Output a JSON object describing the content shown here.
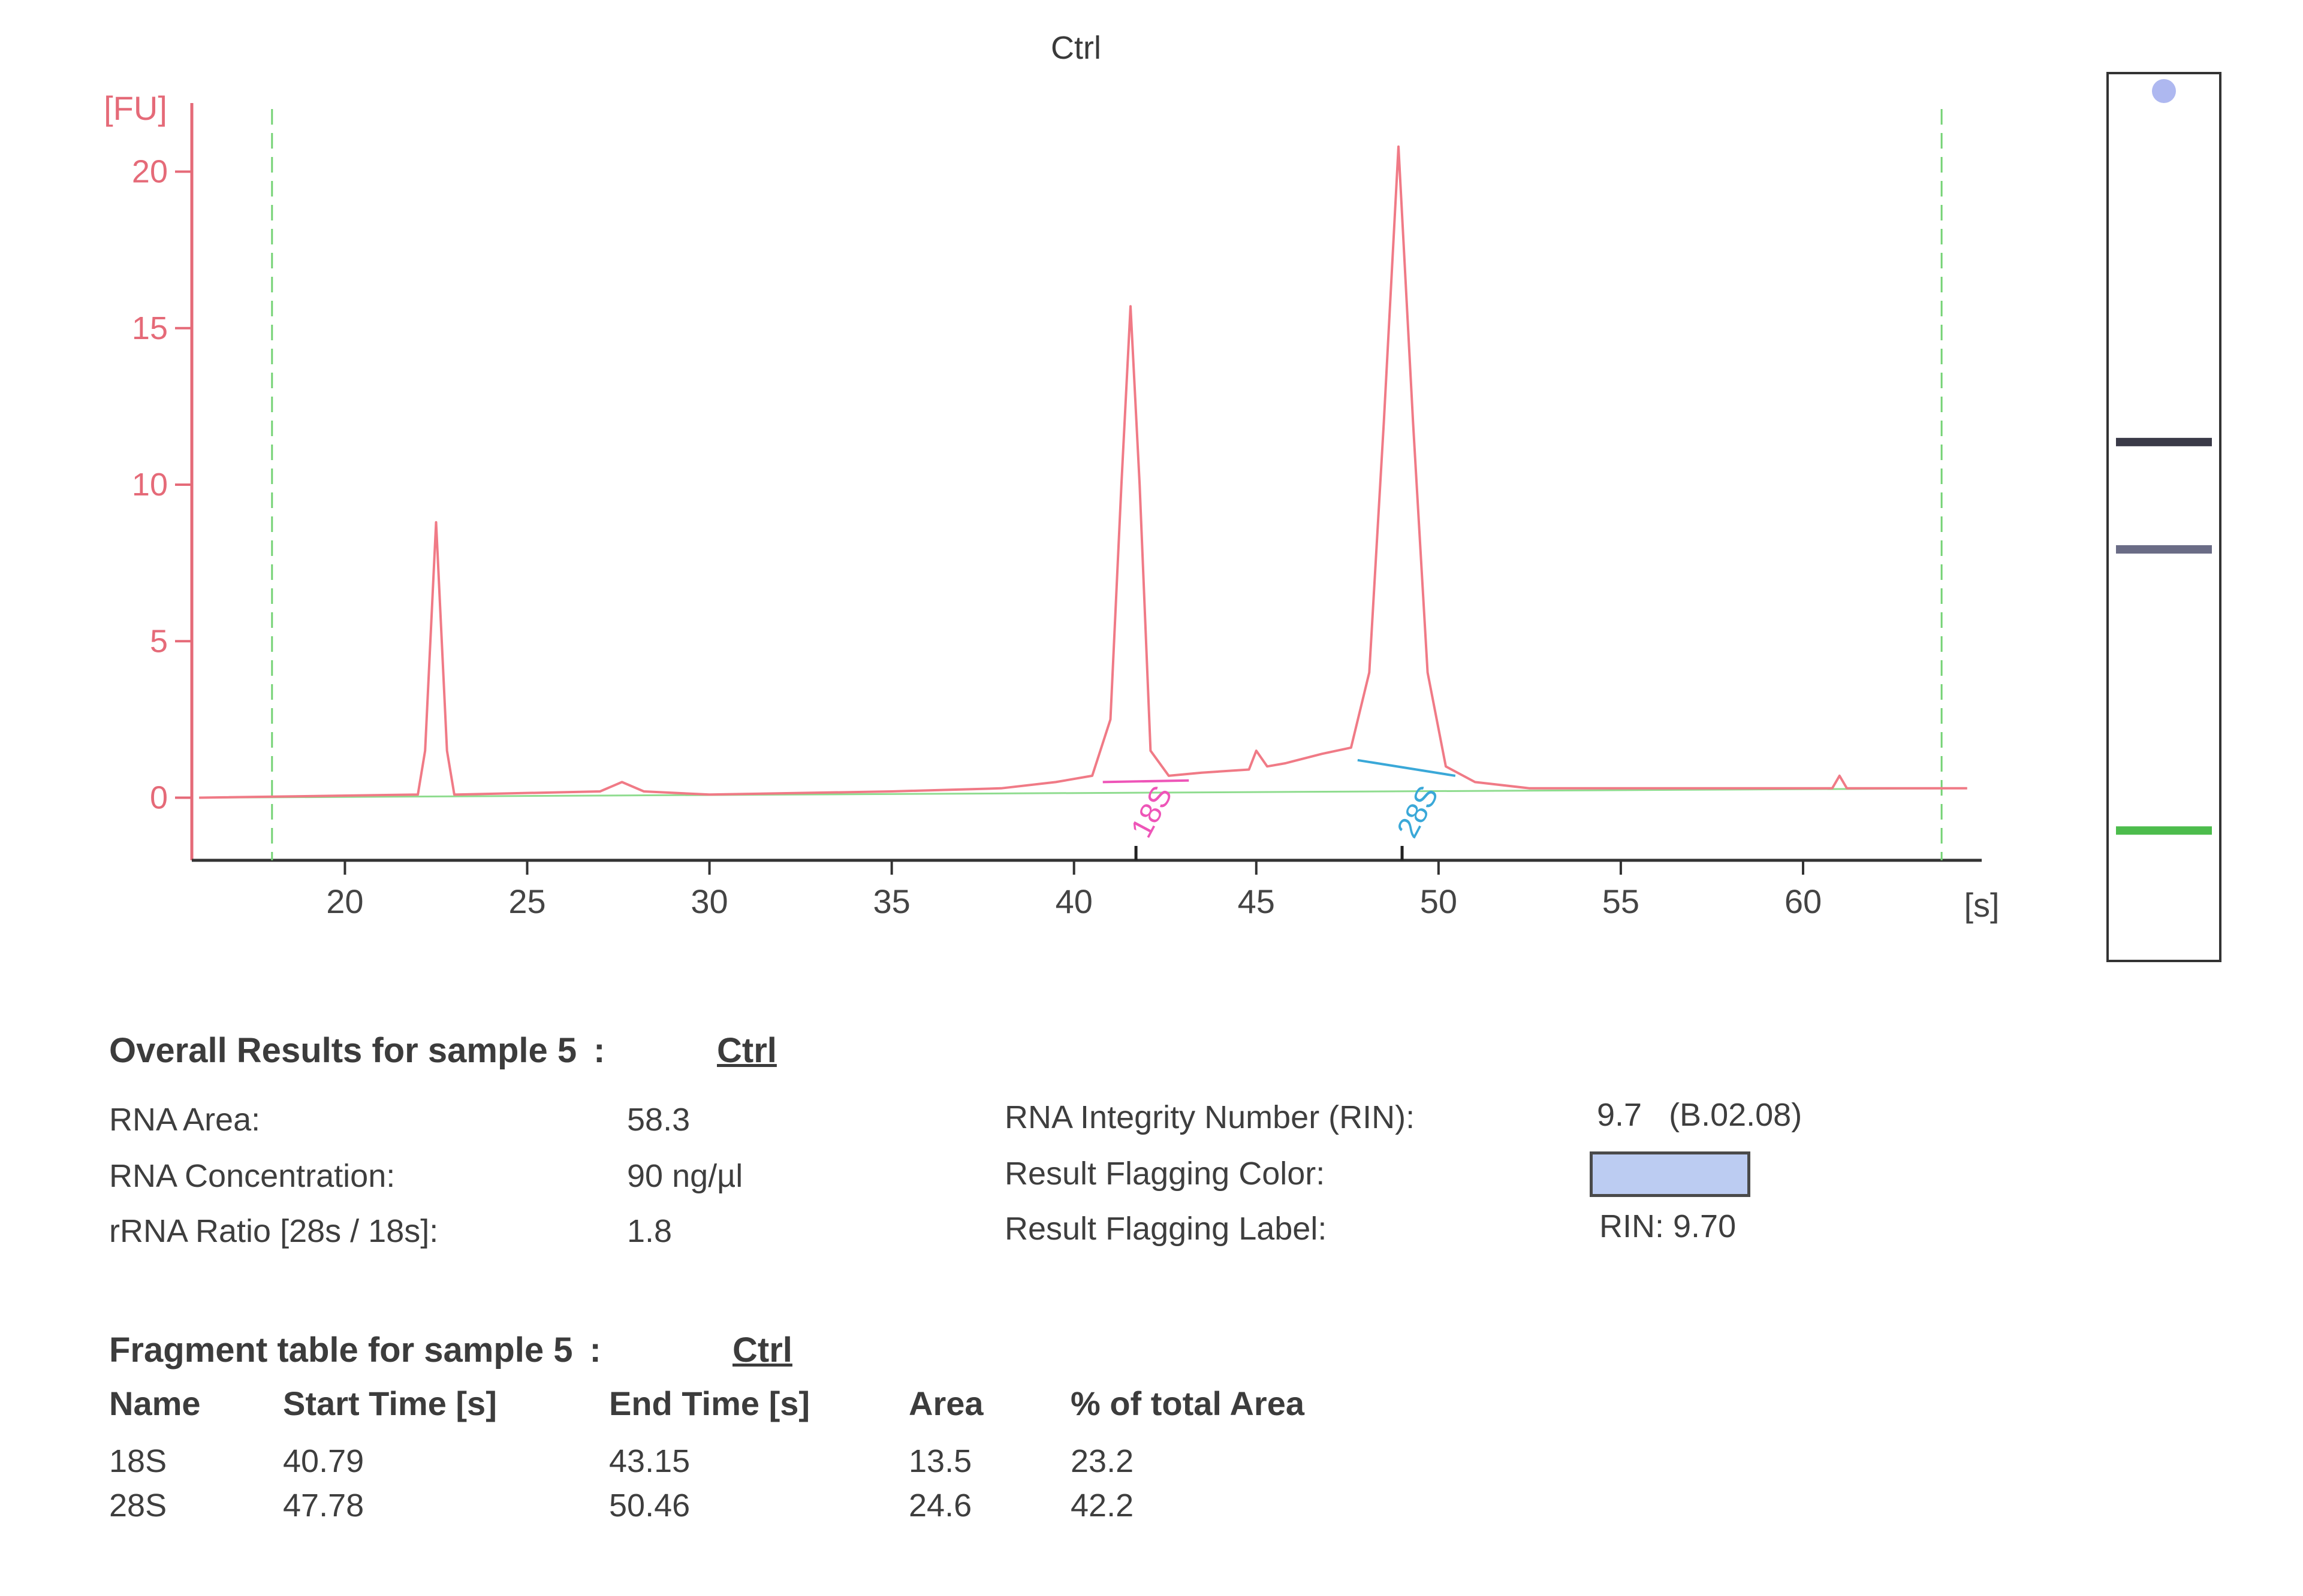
{
  "chart_data": {
    "type": "line",
    "title": "Ctrl",
    "ylabel": "[FU]",
    "xlabel": "[s]",
    "xlim": [
      15.8,
      64.9
    ],
    "ylim": [
      -2,
      22
    ],
    "x_ticks": [
      20,
      25,
      30,
      35,
      40,
      45,
      50,
      55,
      60
    ],
    "y_ticks": [
      0,
      5,
      10,
      15,
      20
    ],
    "grid": false,
    "vertical_markers": [
      18.0,
      63.8
    ],
    "series": [
      {
        "color": "#f07a86",
        "x": [
          16.0,
          22.0,
          22.2,
          22.5,
          22.8,
          23.0,
          27.0,
          27.6,
          28.2,
          30.0,
          35.0,
          38.0,
          39.5,
          40.5,
          41.0,
          41.3,
          41.55,
          41.8,
          42.1,
          42.6,
          43.5,
          44.8,
          45.0,
          45.3,
          45.8,
          46.8,
          47.6,
          48.1,
          48.5,
          48.9,
          49.3,
          49.7,
          50.2,
          51.0,
          52.5,
          55.0,
          60.0,
          60.8,
          61.0,
          61.2,
          62.0,
          64.5
        ],
        "y": [
          0.0,
          0.1,
          1.5,
          8.8,
          1.5,
          0.1,
          0.2,
          0.5,
          0.2,
          0.1,
          0.2,
          0.3,
          0.5,
          0.7,
          2.5,
          10.0,
          15.7,
          10.0,
          1.5,
          0.7,
          0.8,
          0.9,
          1.5,
          1.0,
          1.1,
          1.4,
          1.6,
          4.0,
          12.0,
          20.8,
          12.0,
          4.0,
          1.0,
          0.5,
          0.3,
          0.3,
          0.3,
          0.3,
          0.7,
          0.3,
          0.3,
          0.3
        ]
      }
    ],
    "peaks": [
      {
        "label": "18S",
        "color": "#ee55b8",
        "x": 41.7,
        "start": 40.79,
        "end": 43.15
      },
      {
        "label": "28S",
        "color": "#3aa8d8",
        "x": 49.0,
        "start": 47.78,
        "end": 50.46
      }
    ],
    "gel_bands": [
      {
        "pos": 0.0,
        "color": "#aeb8f0"
      },
      {
        "pos": 0.412,
        "color": "#3a3a48"
      },
      {
        "pos": 0.538,
        "color": "#6a6c86"
      },
      {
        "pos": 0.868,
        "color": "#4cbc4c"
      }
    ]
  },
  "overall": {
    "heading": "Overall Results for sample 5",
    "colon": ":",
    "sample": "Ctrl",
    "rna_area_label": "RNA Area:",
    "rna_area_value": "58.3",
    "rna_conc_label": "RNA Concentration:",
    "rna_conc_value": "90 ng/µl",
    "rrna_ratio_label": "rRNA Ratio [28s / 18s]:",
    "rrna_ratio_value": "1.8",
    "rin_label": "RNA Integrity Number (RIN):",
    "rin_value": "9.7   (B.02.08)",
    "flag_color_label": "Result Flagging Color:",
    "flag_color": "#bcccf2",
    "flag_label_label": "Result Flagging Label:",
    "flag_label_value": "RIN: 9.70"
  },
  "fragments": {
    "heading": "Fragment table for sample 5",
    "colon": ":",
    "sample": "Ctrl",
    "columns": [
      "Name",
      "Start Time [s]",
      "End Time [s]",
      "Area",
      "% of total Area"
    ],
    "rows": [
      [
        "18S",
        "40.79",
        "43.15",
        "13.5",
        "23.2"
      ],
      [
        "28S",
        "47.78",
        "50.46",
        "24.6",
        "42.2"
      ]
    ]
  }
}
